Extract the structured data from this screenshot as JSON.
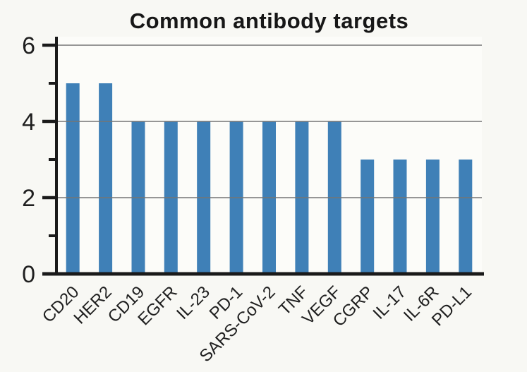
{
  "chart_data": {
    "type": "bar",
    "title": "Common antibody targets",
    "categories": [
      "CD20",
      "HER2",
      "CD19",
      "EGFR",
      "IL-23",
      "PD-1",
      "SARS-CoV-2",
      "TNF",
      "VEGF",
      "CGRP",
      "IL-17",
      "IL-6R",
      "PD-L1"
    ],
    "values": [
      5,
      5,
      4,
      4,
      4,
      4,
      4,
      4,
      4,
      3,
      3,
      3,
      3
    ],
    "xlabel": "",
    "ylabel": "",
    "ylim": [
      0,
      6
    ],
    "yticks_major": [
      0,
      2,
      4,
      6
    ],
    "yticks_minor": [
      1,
      3,
      5
    ],
    "x_tick_rotation_deg": 45,
    "grid": "horizontal-major",
    "legend": "none",
    "colors": {
      "bar": "#3f80b7",
      "axis": "#1a1a1a",
      "grid": "#757575",
      "tick_label": "#1f1f1f",
      "title": "#171717",
      "background": "#f8f8f4",
      "plot_background": "#fcfcf9"
    }
  }
}
